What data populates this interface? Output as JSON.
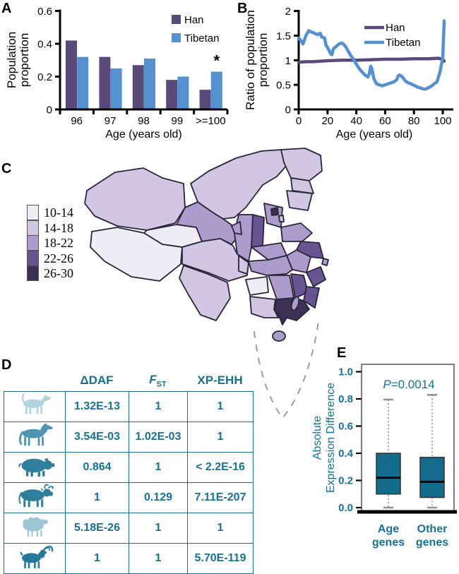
{
  "figure_labels": {
    "a": "A",
    "b": "B",
    "c": "C",
    "d": "D",
    "e": "E"
  },
  "colors": {
    "han": "#5A4A7C",
    "tibetan": "#5590D0",
    "teal_text": "#1B7091",
    "box_fill": "#146B8B",
    "table_border": "#1B7091",
    "map_border": "#26263A",
    "dash_line": "#9C9C9C",
    "axis": "#000000"
  },
  "chart_data": [
    {
      "id": "A",
      "type": "bar",
      "ylabel_lines": [
        "Population",
        "proportion"
      ],
      "xlabel": "Age (years old)",
      "categories": [
        "96",
        "97",
        "98",
        "99",
        ">=100"
      ],
      "series": [
        {
          "name": "Han",
          "color": "#5A4A7C",
          "values": [
            0.42,
            0.32,
            0.27,
            0.18,
            0.12
          ]
        },
        {
          "name": "Tibetan",
          "color": "#5590D0",
          "values": [
            0.32,
            0.25,
            0.31,
            0.2,
            0.23
          ]
        }
      ],
      "ylim": [
        0,
        0.6
      ],
      "yticks": [
        0,
        0.2,
        0.4,
        0.6
      ],
      "ytick_labels": [
        "0",
        "0.2",
        "0.4",
        "0.6"
      ],
      "legend_position": "top-right",
      "annotation": {
        "text": "*",
        "category_index": 4,
        "series_index": 1
      }
    },
    {
      "id": "B",
      "type": "line",
      "ylabel_lines": [
        "Ratio of population",
        "proportion"
      ],
      "xlabel": "Age (years old)",
      "xlim": [
        0,
        105
      ],
      "ylim": [
        0,
        2
      ],
      "xticks": [
        0,
        20,
        40,
        60,
        80,
        100
      ],
      "xtick_labels": [
        "0",
        "20",
        "40",
        "60",
        "80",
        "100"
      ],
      "yticks": [
        0,
        0.5,
        1,
        1.5,
        2
      ],
      "ytick_labels": [
        "0",
        "0.5",
        "1",
        "1.5",
        "2"
      ],
      "legend_position": "top-center",
      "series": [
        {
          "name": "Han",
          "color": "#5A4A7C",
          "points": [
            [
              0,
              0.96
            ],
            [
              5,
              0.97
            ],
            [
              10,
              0.97
            ],
            [
              20,
              0.99
            ],
            [
              30,
              1.0
            ],
            [
              40,
              1.0
            ],
            [
              50,
              1.01
            ],
            [
              60,
              1.02
            ],
            [
              70,
              1.02
            ],
            [
              80,
              1.03
            ],
            [
              90,
              1.03
            ],
            [
              97,
              1.04
            ],
            [
              100,
              1.02
            ],
            [
              101,
              0.98
            ]
          ]
        },
        {
          "name": "Tibetan",
          "color": "#5590D0",
          "points": [
            [
              0,
              1.45
            ],
            [
              2,
              1.38
            ],
            [
              3,
              1.33
            ],
            [
              5,
              1.5
            ],
            [
              7,
              1.6
            ],
            [
              9,
              1.57
            ],
            [
              11,
              1.55
            ],
            [
              13,
              1.52
            ],
            [
              15,
              1.55
            ],
            [
              16,
              1.47
            ],
            [
              18,
              1.45
            ],
            [
              19,
              1.3
            ],
            [
              20,
              1.26
            ],
            [
              22,
              1.14
            ],
            [
              23,
              1.11
            ],
            [
              24,
              1.23
            ],
            [
              26,
              1.28
            ],
            [
              28,
              1.33
            ],
            [
              30,
              1.35
            ],
            [
              31,
              1.33
            ],
            [
              33,
              1.26
            ],
            [
              34,
              1.2
            ],
            [
              36,
              1.1
            ],
            [
              38,
              1.02
            ],
            [
              40,
              0.92
            ],
            [
              42,
              0.83
            ],
            [
              44,
              0.76
            ],
            [
              46,
              0.7
            ],
            [
              48,
              0.66
            ],
            [
              49,
              0.72
            ],
            [
              50,
              0.88
            ],
            [
              51,
              0.81
            ],
            [
              52,
              0.64
            ],
            [
              54,
              0.52
            ],
            [
              56,
              0.5
            ],
            [
              58,
              0.48
            ],
            [
              60,
              0.5
            ],
            [
              62,
              0.52
            ],
            [
              64,
              0.54
            ],
            [
              66,
              0.56
            ],
            [
              68,
              0.6
            ],
            [
              69,
              0.68
            ],
            [
              70,
              0.7
            ],
            [
              72,
              0.66
            ],
            [
              74,
              0.58
            ],
            [
              76,
              0.54
            ],
            [
              78,
              0.52
            ],
            [
              80,
              0.49
            ],
            [
              82,
              0.46
            ],
            [
              84,
              0.44
            ],
            [
              86,
              0.42
            ],
            [
              88,
              0.41
            ],
            [
              90,
              0.44
            ],
            [
              92,
              0.47
            ],
            [
              94,
              0.52
            ],
            [
              96,
              0.56
            ],
            [
              98,
              0.75
            ],
            [
              100,
              1.05
            ],
            [
              101,
              1.8
            ]
          ]
        }
      ]
    },
    {
      "id": "C",
      "type": "choropleth",
      "region": "China",
      "legend": [
        {
          "label": "10-14",
          "color": "#F0ECF6"
        },
        {
          "label": "14-18",
          "color": "#D2C6E2"
        },
        {
          "label": "18-22",
          "color": "#AC9BCB"
        },
        {
          "label": "22-26",
          "color": "#695390"
        },
        {
          "label": "26-30",
          "color": "#3E3055"
        }
      ]
    },
    {
      "id": "D",
      "type": "table",
      "columns": [
        {
          "text": "ΔDAF",
          "italic": false,
          "sub": ""
        },
        {
          "text": "F",
          "italic": true,
          "sub": "ST"
        },
        {
          "text": "XP-EHH",
          "italic": false,
          "sub": ""
        }
      ],
      "rows": [
        {
          "animal": "dog",
          "color": "#AFD3DF",
          "values": [
            "1.32E-13",
            "1",
            "1"
          ]
        },
        {
          "animal": "horse",
          "color": "#4E94B0",
          "values": [
            "3.54E-03",
            "1.02E-03",
            "1"
          ]
        },
        {
          "animal": "pig",
          "color": "#2E7E9C",
          "values": [
            "0.864",
            "1",
            "< 2.2E-16"
          ]
        },
        {
          "animal": "cattle",
          "color": "#2E7E9C",
          "values": [
            "1",
            "0.129",
            "7.11E-207"
          ]
        },
        {
          "animal": "sheep",
          "color": "#9CC6D4",
          "values": [
            "5.18E-26",
            "1",
            "1"
          ]
        },
        {
          "animal": "goat",
          "color": "#27799A",
          "values": [
            "1",
            "1",
            "5.70E-119"
          ]
        }
      ]
    },
    {
      "id": "E",
      "type": "boxplot",
      "ylabel_lines": [
        "Absolute",
        "Expression Difference"
      ],
      "annotation": "P=0.0014",
      "annotation_italic_prefix": "P",
      "annotation_rest": "=0.0014",
      "ylim": [
        0,
        1
      ],
      "yticks": [
        0,
        0.2,
        0.4,
        0.6,
        0.8,
        1
      ],
      "ytick_labels": [
        "0.0",
        "0.2",
        "0.4",
        "0.6",
        "0.8",
        "1.0"
      ],
      "boxes": [
        {
          "label_lines": [
            "Age",
            "genes"
          ],
          "whisker_low": 0,
          "q1": 0.1,
          "median": 0.22,
          "q3": 0.4,
          "whisker_high": 0.795
        },
        {
          "label_lines": [
            "Other",
            "genes"
          ],
          "whisker_low": 0,
          "q1": 0.075,
          "median": 0.19,
          "q3": 0.37,
          "whisker_high": 0.83
        }
      ]
    }
  ]
}
